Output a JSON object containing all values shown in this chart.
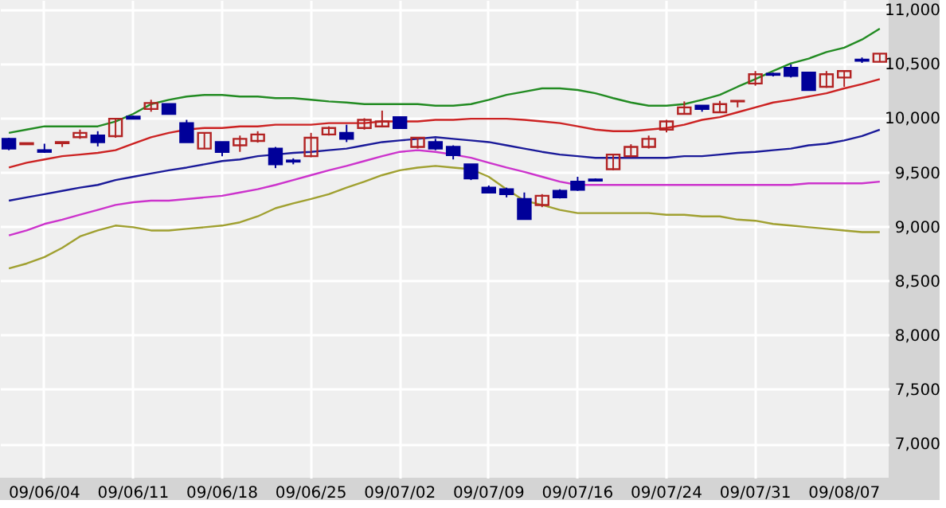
{
  "chart_data": {
    "type": "candlestick",
    "categories": [
      null,
      null,
      "09/06/04",
      null,
      null,
      null,
      null,
      "09/06/11",
      null,
      null,
      null,
      null,
      "09/06/18",
      null,
      null,
      null,
      null,
      "09/06/25",
      null,
      null,
      null,
      null,
      "09/07/02",
      null,
      null,
      null,
      null,
      "09/07/09",
      null,
      null,
      null,
      null,
      "09/07/16",
      null,
      null,
      null,
      null,
      "09/07/24",
      null,
      null,
      null,
      null,
      "09/07/31",
      null,
      null,
      null,
      null,
      "09/08/07",
      null,
      null
    ],
    "ohlc": [
      [
        9810,
        9820,
        9705,
        9720
      ],
      [
        9760,
        9775,
        9755,
        9770
      ],
      [
        9705,
        9765,
        9680,
        9690
      ],
      [
        9770,
        9780,
        9735,
        9780
      ],
      [
        9825,
        9895,
        9810,
        9865
      ],
      [
        9840,
        9880,
        9740,
        9780
      ],
      [
        9835,
        9995,
        9820,
        9995
      ],
      [
        10015,
        10025,
        9990,
        9995
      ],
      [
        10085,
        10170,
        10060,
        10140
      ],
      [
        10130,
        10130,
        10040,
        10040
      ],
      [
        9955,
        9985,
        9780,
        9780
      ],
      [
        9720,
        9865,
        9720,
        9865
      ],
      [
        9780,
        9780,
        9650,
        9690
      ],
      [
        9750,
        9840,
        9690,
        9810
      ],
      [
        9790,
        9880,
        9775,
        9850
      ],
      [
        9720,
        9735,
        9540,
        9575
      ],
      [
        9610,
        9630,
        9575,
        9600
      ],
      [
        9650,
        9865,
        9640,
        9820
      ],
      [
        9850,
        9925,
        9840,
        9910
      ],
      [
        9865,
        9940,
        9780,
        9810
      ],
      [
        9910,
        10000,
        9895,
        9985
      ],
      [
        9925,
        10070,
        9915,
        9970
      ],
      [
        10010,
        10010,
        9910,
        9910
      ],
      [
        9735,
        9820,
        9720,
        9820
      ],
      [
        9780,
        9810,
        9705,
        9720
      ],
      [
        9735,
        9750,
        9620,
        9660
      ],
      [
        9575,
        9575,
        9430,
        9445
      ],
      [
        9360,
        9380,
        9315,
        9315
      ],
      [
        9345,
        9360,
        9270,
        9300
      ],
      [
        9255,
        9315,
        9070,
        9070
      ],
      [
        9200,
        9300,
        9180,
        9285
      ],
      [
        9330,
        9345,
        9260,
        9270
      ],
      [
        9415,
        9460,
        9330,
        9340
      ],
      [
        9435,
        9445,
        9420,
        9425
      ],
      [
        9530,
        9665,
        9520,
        9665
      ],
      [
        9650,
        9760,
        9640,
        9735
      ],
      [
        9735,
        9840,
        9720,
        9810
      ],
      [
        9895,
        9985,
        9870,
        9970
      ],
      [
        10040,
        10155,
        10040,
        10100
      ],
      [
        10115,
        10115,
        10060,
        10085
      ],
      [
        10055,
        10160,
        10050,
        10130
      ],
      [
        10155,
        10160,
        10100,
        10160
      ],
      [
        10320,
        10435,
        10300,
        10405
      ],
      [
        10410,
        10420,
        10385,
        10400
      ],
      [
        10465,
        10495,
        10375,
        10390
      ],
      [
        10420,
        10420,
        10260,
        10260
      ],
      [
        10290,
        10435,
        10280,
        10405
      ],
      [
        10375,
        10435,
        10290,
        10435
      ],
      [
        10540,
        10560,
        10510,
        10530
      ],
      [
        10520,
        10595,
        10520,
        10595
      ]
    ],
    "colors": [
      "#000099",
      "#b22222",
      "#000099",
      "#b22222",
      "#b22222",
      "#000099",
      "#b22222",
      "#000099",
      "#b22222",
      "#000099",
      "#000099",
      "#b22222",
      "#000099",
      "#b22222",
      "#b22222",
      "#000099",
      "#000099",
      "#b22222",
      "#b22222",
      "#000099",
      "#b22222",
      "#b22222",
      "#000099",
      "#b22222",
      "#000099",
      "#000099",
      "#000099",
      "#000099",
      "#000099",
      "#000099",
      "#b22222",
      "#000099",
      "#000099",
      "#000099",
      "#b22222",
      "#b22222",
      "#b22222",
      "#b22222",
      "#b22222",
      "#000099",
      "#b22222",
      "#b22222",
      "#b22222",
      "#000099",
      "#000099",
      "#000099",
      "#b22222",
      "#b22222",
      "#000099",
      "#b22222"
    ],
    "series": [
      {
        "type": "line",
        "color": "#228b22",
        "values": [
          9865,
          9895,
          9925,
          9925,
          9925,
          9925,
          9970,
          10040,
          10130,
          10170,
          10200,
          10215,
          10215,
          10200,
          10200,
          10185,
          10185,
          10170,
          10155,
          10145,
          10130,
          10130,
          10130,
          10130,
          10115,
          10115,
          10130,
          10170,
          10215,
          10245,
          10275,
          10275,
          10260,
          10230,
          10185,
          10145,
          10115,
          10115,
          10130,
          10170,
          10215,
          10290,
          10360,
          10435,
          10505,
          10550,
          10610,
          10650,
          10725,
          10825
        ]
      },
      {
        "type": "line",
        "color": "#cc2222",
        "values": [
          9545,
          9590,
          9620,
          9650,
          9665,
          9680,
          9705,
          9765,
          9825,
          9865,
          9895,
          9910,
          9910,
          9925,
          9925,
          9940,
          9940,
          9940,
          9955,
          9955,
          9955,
          9970,
          9970,
          9970,
          9985,
          9985,
          9995,
          9995,
          9995,
          9985,
          9970,
          9955,
          9925,
          9895,
          9880,
          9880,
          9895,
          9910,
          9940,
          9985,
          10010,
          10055,
          10100,
          10145,
          10170,
          10200,
          10230,
          10275,
          10315,
          10360
        ]
      },
      {
        "type": "line",
        "color": "#1a1a99",
        "values": [
          9240,
          9270,
          9300,
          9330,
          9360,
          9385,
          9430,
          9460,
          9490,
          9520,
          9545,
          9575,
          9605,
          9620,
          9650,
          9665,
          9680,
          9690,
          9705,
          9720,
          9750,
          9780,
          9795,
          9810,
          9825,
          9810,
          9795,
          9780,
          9750,
          9720,
          9690,
          9665,
          9650,
          9635,
          9635,
          9635,
          9635,
          9635,
          9650,
          9650,
          9665,
          9680,
          9690,
          9705,
          9720,
          9750,
          9765,
          9795,
          9835,
          9895
        ]
      },
      {
        "type": "line",
        "color": "#cc33cc",
        "values": [
          8920,
          8965,
          9025,
          9065,
          9110,
          9155,
          9200,
          9225,
          9240,
          9240,
          9255,
          9270,
          9285,
          9315,
          9345,
          9385,
          9430,
          9475,
          9520,
          9560,
          9605,
          9650,
          9690,
          9705,
          9690,
          9665,
          9635,
          9590,
          9545,
          9505,
          9460,
          9415,
          9385,
          9385,
          9385,
          9385,
          9385,
          9385,
          9385,
          9385,
          9385,
          9385,
          9385,
          9385,
          9385,
          9400,
          9400,
          9400,
          9400,
          9415
        ]
      },
      {
        "type": "line",
        "color": "#a0a030",
        "values": [
          8615,
          8660,
          8720,
          8805,
          8910,
          8965,
          9010,
          8995,
          8965,
          8965,
          8980,
          8995,
          9010,
          9040,
          9095,
          9170,
          9215,
          9255,
          9300,
          9360,
          9415,
          9475,
          9520,
          9545,
          9560,
          9545,
          9530,
          9460,
          9345,
          9240,
          9200,
          9155,
          9125,
          9125,
          9125,
          9125,
          9125,
          9110,
          9110,
          9095,
          9095,
          9065,
          9055,
          9025,
          9010,
          8995,
          8980,
          8965,
          8950,
          8950
        ]
      }
    ],
    "ylim": [
      6685,
      11090
    ],
    "yticks": [
      {
        "value": 7000,
        "label": "7,000"
      },
      {
        "value": 7500,
        "label": "7,500"
      },
      {
        "value": 8000,
        "label": "8,000"
      },
      {
        "value": 8500,
        "label": "8,500"
      },
      {
        "value": 9000,
        "label": "9,000"
      },
      {
        "value": 9500,
        "label": "9,500"
      },
      {
        "value": 10000,
        "label": "10,000"
      },
      {
        "value": 10500,
        "label": "10,500"
      },
      {
        "value": 11000,
        "label": "11,000"
      }
    ],
    "grid": true
  }
}
